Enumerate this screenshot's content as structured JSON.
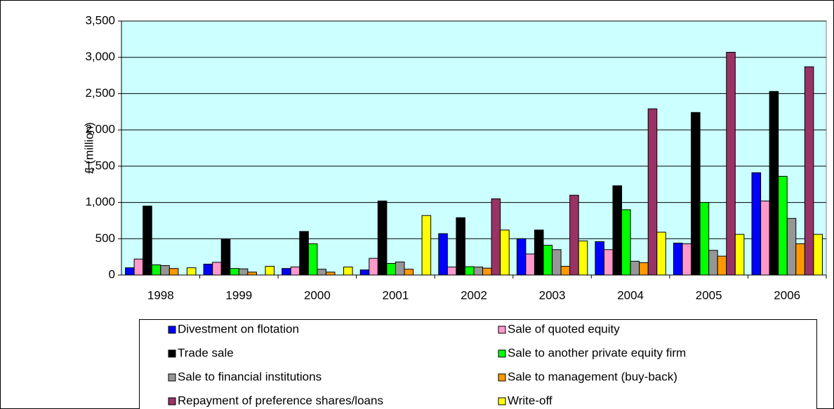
{
  "chart_data": {
    "type": "bar",
    "y_label": "£ (million)",
    "categories": [
      "1998",
      "1999",
      "2000",
      "2001",
      "2002",
      "2003",
      "2004",
      "2005",
      "2006"
    ],
    "series": [
      {
        "name": "Divestment on flotation",
        "color": "#0000ff",
        "values": [
          100,
          150,
          90,
          70,
          570,
          500,
          460,
          440,
          1410
        ]
      },
      {
        "name": "Sale of quoted equity",
        "color": "#ff99cc",
        "values": [
          220,
          175,
          110,
          230,
          110,
          290,
          350,
          430,
          1020
        ]
      },
      {
        "name": "Trade sale",
        "color": "#000000",
        "values": [
          950,
          490,
          600,
          1020,
          790,
          620,
          1230,
          2240,
          2530
        ]
      },
      {
        "name": "Sale to another private equity firm",
        "color": "#00ff00",
        "values": [
          140,
          90,
          430,
          160,
          115,
          410,
          900,
          1000,
          1360
        ]
      },
      {
        "name": "Sale to financial institutions",
        "color": "#969696",
        "values": [
          130,
          85,
          80,
          180,
          110,
          350,
          190,
          340,
          780
        ]
      },
      {
        "name": "Sale to management (buy-back)",
        "color": "#ff9900",
        "values": [
          90,
          40,
          40,
          80,
          95,
          120,
          170,
          260,
          430
        ]
      },
      {
        "name": "Repayment of preference shares/loans",
        "color": "#993366",
        "values": [
          0,
          0,
          0,
          0,
          1050,
          1100,
          2290,
          3070,
          2870
        ]
      },
      {
        "name": "Write-off",
        "color": "#ffff00",
        "values": [
          100,
          120,
          110,
          820,
          620,
          470,
          590,
          560,
          560
        ]
      }
    ],
    "ylim": [
      0,
      3500
    ],
    "yticks": [
      0,
      {
        "value": 500,
        "label": "500"
      },
      {
        "value": 1000,
        "label": "1,000"
      },
      {
        "value": 1500,
        "label": "1,500"
      },
      {
        "value": 2000,
        "label": "2,000"
      },
      {
        "value": 2500,
        "label": "2,500"
      },
      {
        "value": 3000,
        "label": "3,000"
      },
      {
        "value": 3500,
        "label": "3,500"
      }
    ],
    "grid": true,
    "plot_background": "#ccffff",
    "legend": "bottom"
  }
}
